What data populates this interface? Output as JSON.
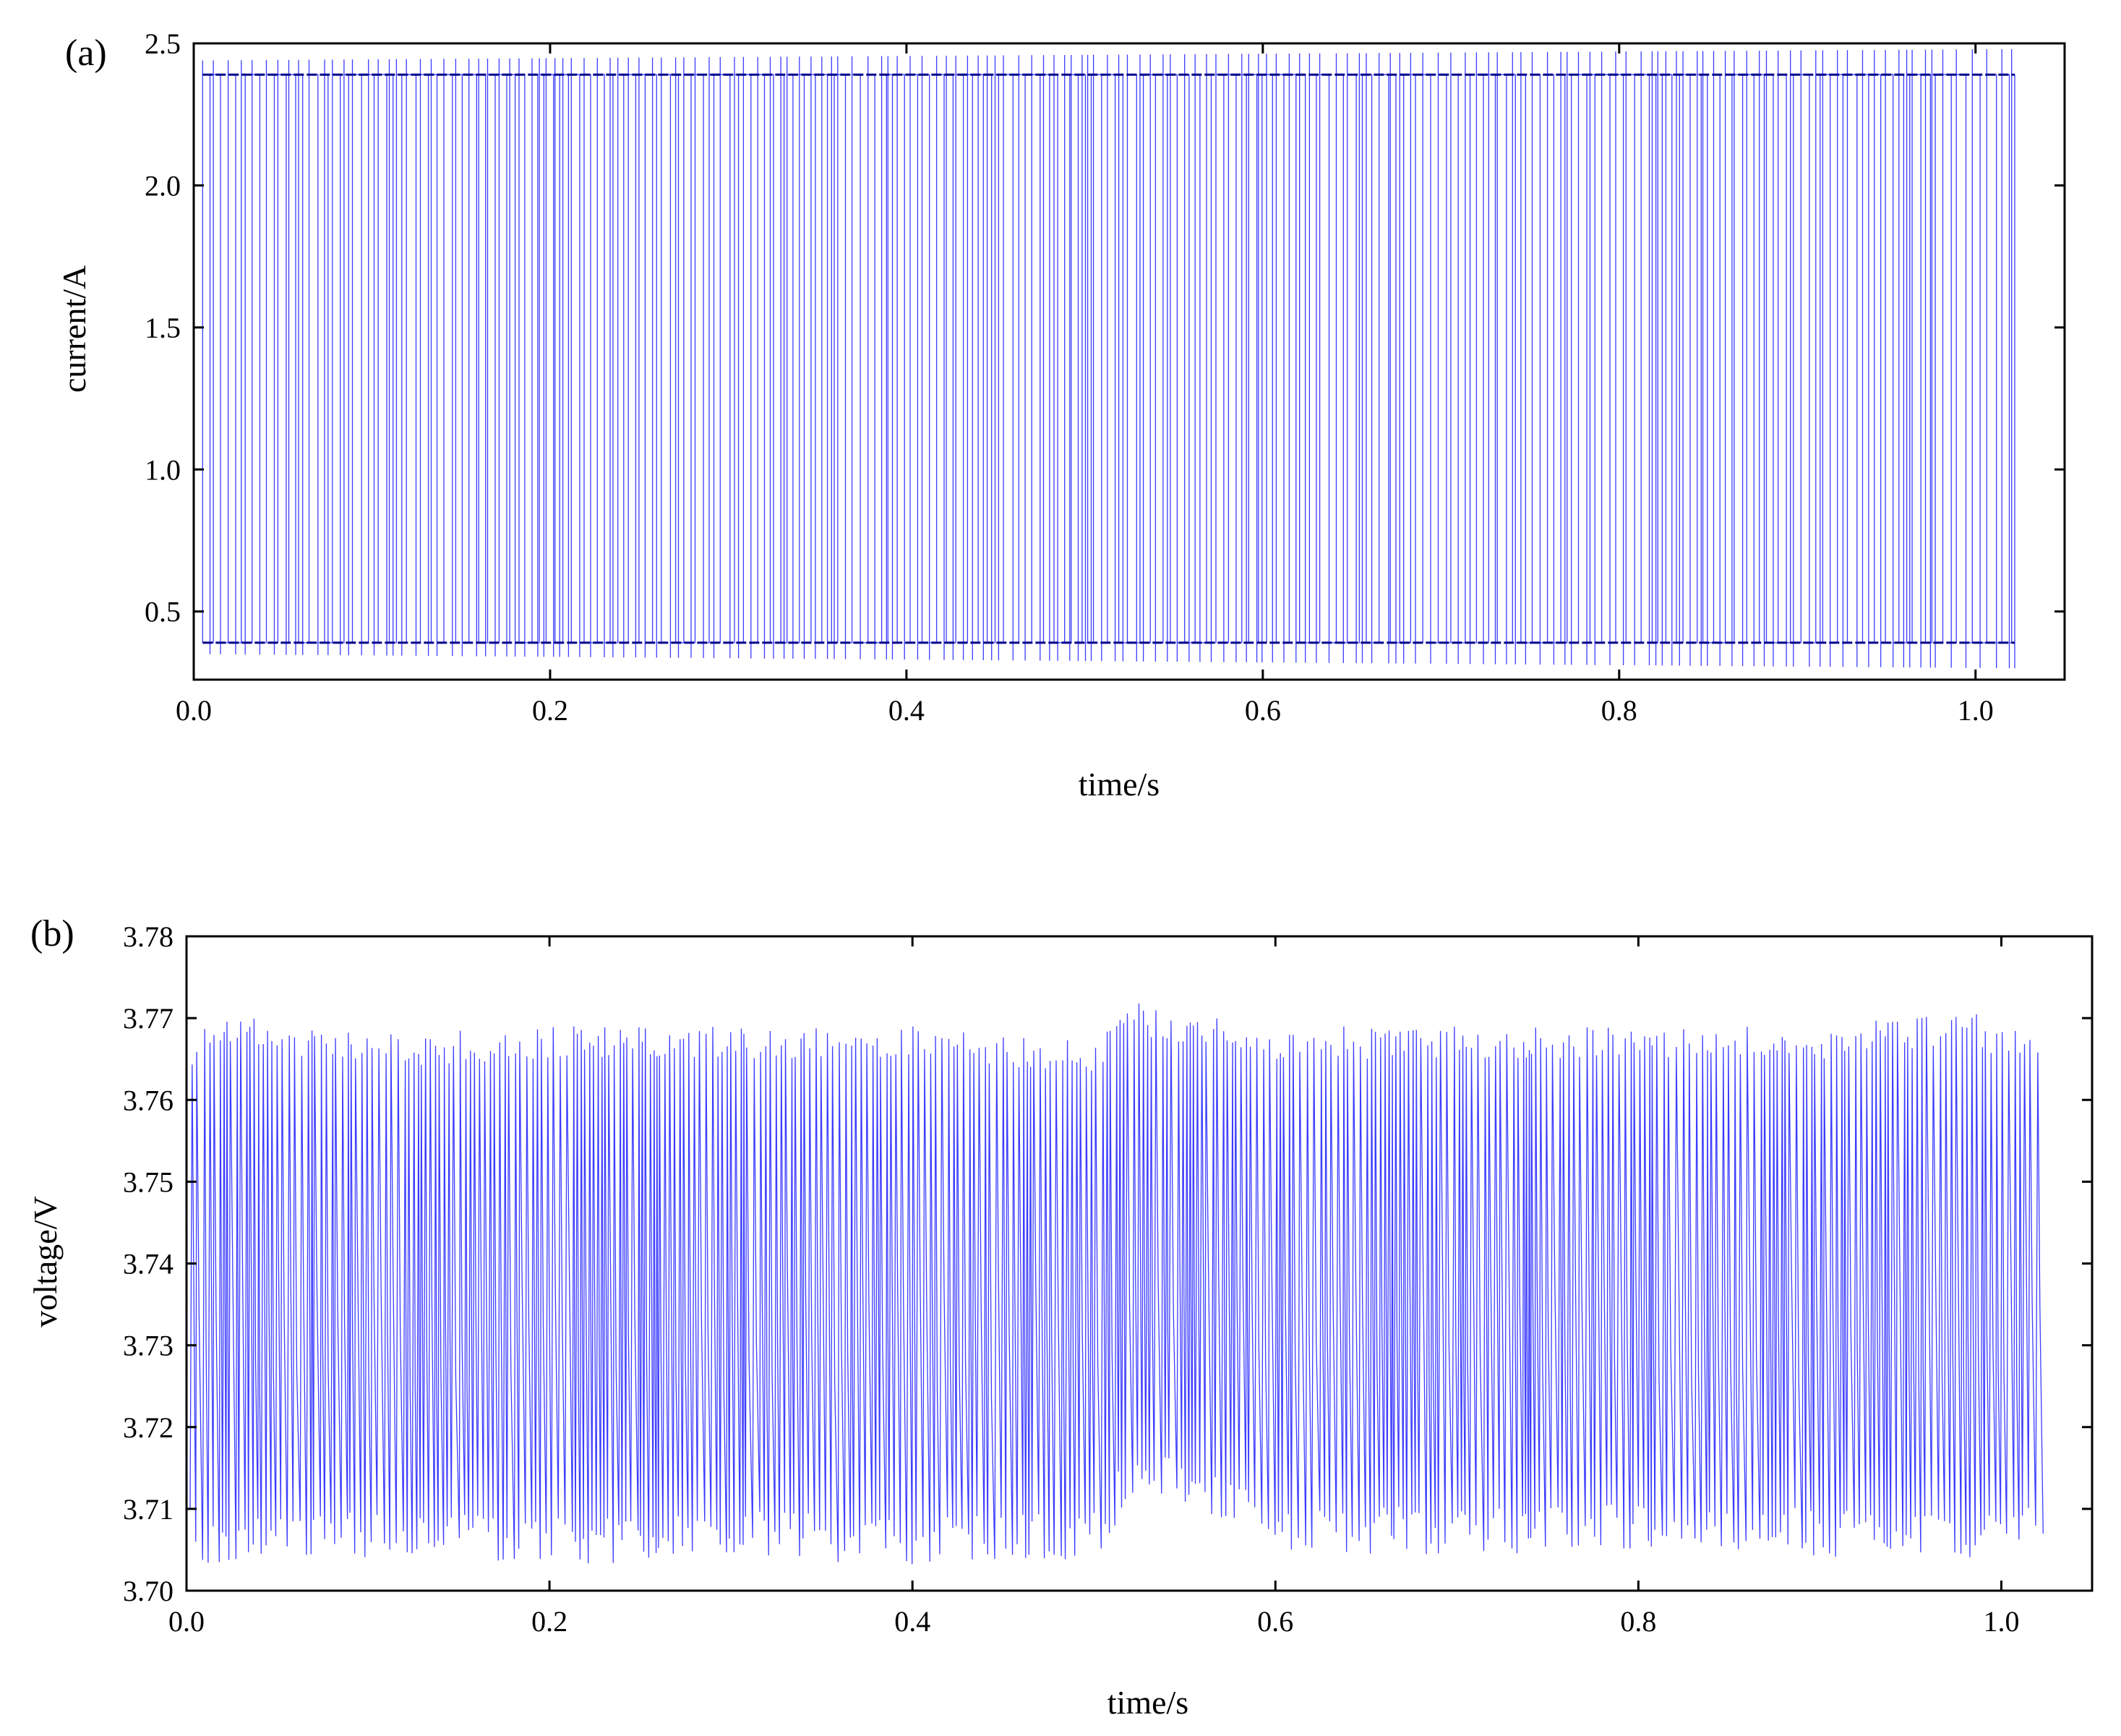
{
  "chart_data": [
    {
      "panel_label": "(a)",
      "type": "line",
      "xlabel": "time/s",
      "ylabel": "current/A",
      "xlim": [
        0.0,
        1.05
      ],
      "ylim": [
        0.26,
        2.5
      ],
      "xticks": [
        "0.0",
        "0.2",
        "0.4",
        "0.6",
        "0.8",
        "1.0"
      ],
      "yticks": [
        "0.5",
        "1.0",
        "1.5",
        "2.0",
        "2.5"
      ],
      "series": [
        {
          "color": "#1a1aff",
          "signal": "pulse train switching between low and high levels",
          "x_range": [
            0.005,
            1.022
          ],
          "low_level": 0.39,
          "high_level": 2.39,
          "overshoot_low": [
            0.3,
            0.35
          ],
          "overshoot_high": [
            2.44,
            2.48
          ]
        }
      ]
    },
    {
      "panel_label": "(b)",
      "type": "line",
      "xlabel": "time/s",
      "ylabel": "voltage/V",
      "xlim": [
        0.0,
        1.05
      ],
      "ylim": [
        3.7,
        3.78
      ],
      "xticks": [
        "0.0",
        "0.2",
        "0.4",
        "0.6",
        "0.8",
        "1.0"
      ],
      "yticks": [
        "3.70",
        "3.71",
        "3.72",
        "3.73",
        "3.74",
        "3.75",
        "3.76",
        "3.77",
        "3.78"
      ],
      "series": [
        {
          "color": "#1a1aff",
          "signal": "dense oscillation between lower and upper envelopes",
          "x_range": [
            0.002,
            1.022
          ],
          "lower_envelope": [
            [
              0.0,
              3.703
            ],
            [
              0.1,
              3.704
            ],
            [
              0.2,
              3.703
            ],
            [
              0.3,
              3.704
            ],
            [
              0.4,
              3.703
            ],
            [
              0.5,
              3.704
            ],
            [
              0.52,
              3.713
            ],
            [
              0.6,
              3.705
            ],
            [
              0.7,
              3.704
            ],
            [
              0.8,
              3.705
            ],
            [
              0.9,
              3.704
            ],
            [
              1.0,
              3.704
            ],
            [
              1.022,
              3.707
            ]
          ],
          "upper_envelope": [
            [
              0.0,
              3.766
            ],
            [
              0.01,
              3.771
            ],
            [
              0.1,
              3.768
            ],
            [
              0.2,
              3.769
            ],
            [
              0.3,
              3.769
            ],
            [
              0.4,
              3.769
            ],
            [
              0.5,
              3.767
            ],
            [
              0.52,
              3.772
            ],
            [
              0.6,
              3.769
            ],
            [
              0.7,
              3.769
            ],
            [
              0.8,
              3.769
            ],
            [
              0.9,
              3.769
            ],
            [
              0.98,
              3.771
            ],
            [
              1.022,
              3.767
            ]
          ]
        }
      ]
    }
  ]
}
